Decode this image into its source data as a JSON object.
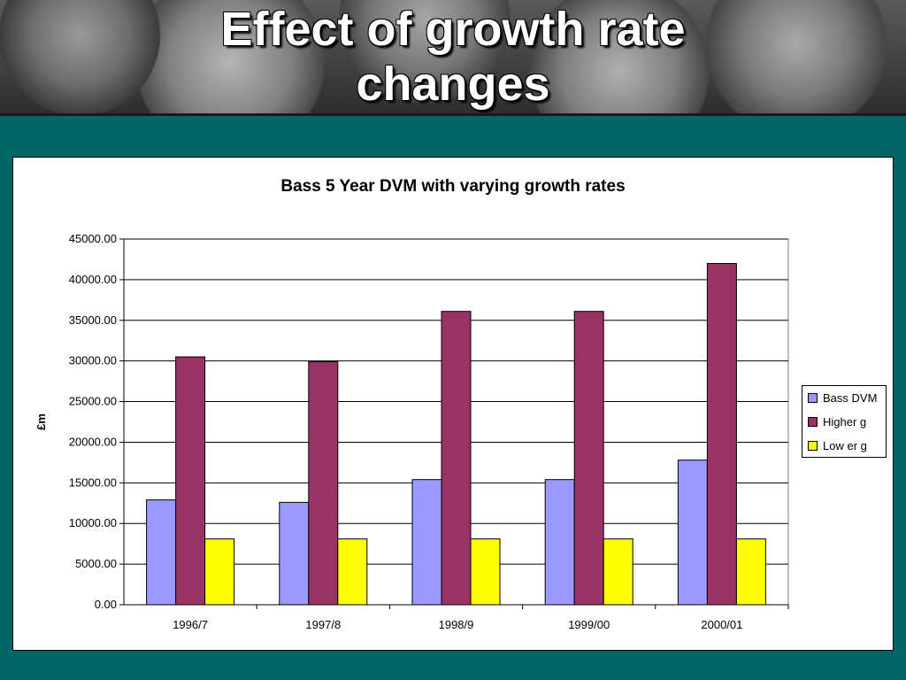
{
  "slide": {
    "title": "Effect of growth rate changes"
  },
  "chart_data": {
    "type": "bar",
    "title": "Bass 5 Year DVM with varying growth rates",
    "xlabel": "",
    "ylabel": "£m",
    "categories": [
      "1996/7",
      "1997/8",
      "1998/9",
      "1999/00",
      "2000/01"
    ],
    "series": [
      {
        "name": "Bass DVM",
        "color": "#9999ff",
        "values": [
          12900,
          12600,
          15400,
          15400,
          17800
        ]
      },
      {
        "name": "Higher g",
        "color": "#993366",
        "values": [
          30500,
          29900,
          36100,
          36100,
          42000
        ]
      },
      {
        "name": "Low er g",
        "color": "#ffff00",
        "values": [
          8100,
          8100,
          8100,
          8100,
          8100
        ]
      }
    ],
    "ylim": [
      0,
      45000
    ],
    "yticks": [
      "0.00",
      "5000.00",
      "10000.00",
      "15000.00",
      "20000.00",
      "25000.00",
      "30000.00",
      "35000.00",
      "40000.00",
      "45000.00"
    ],
    "grid": true,
    "legend_position": "right"
  }
}
